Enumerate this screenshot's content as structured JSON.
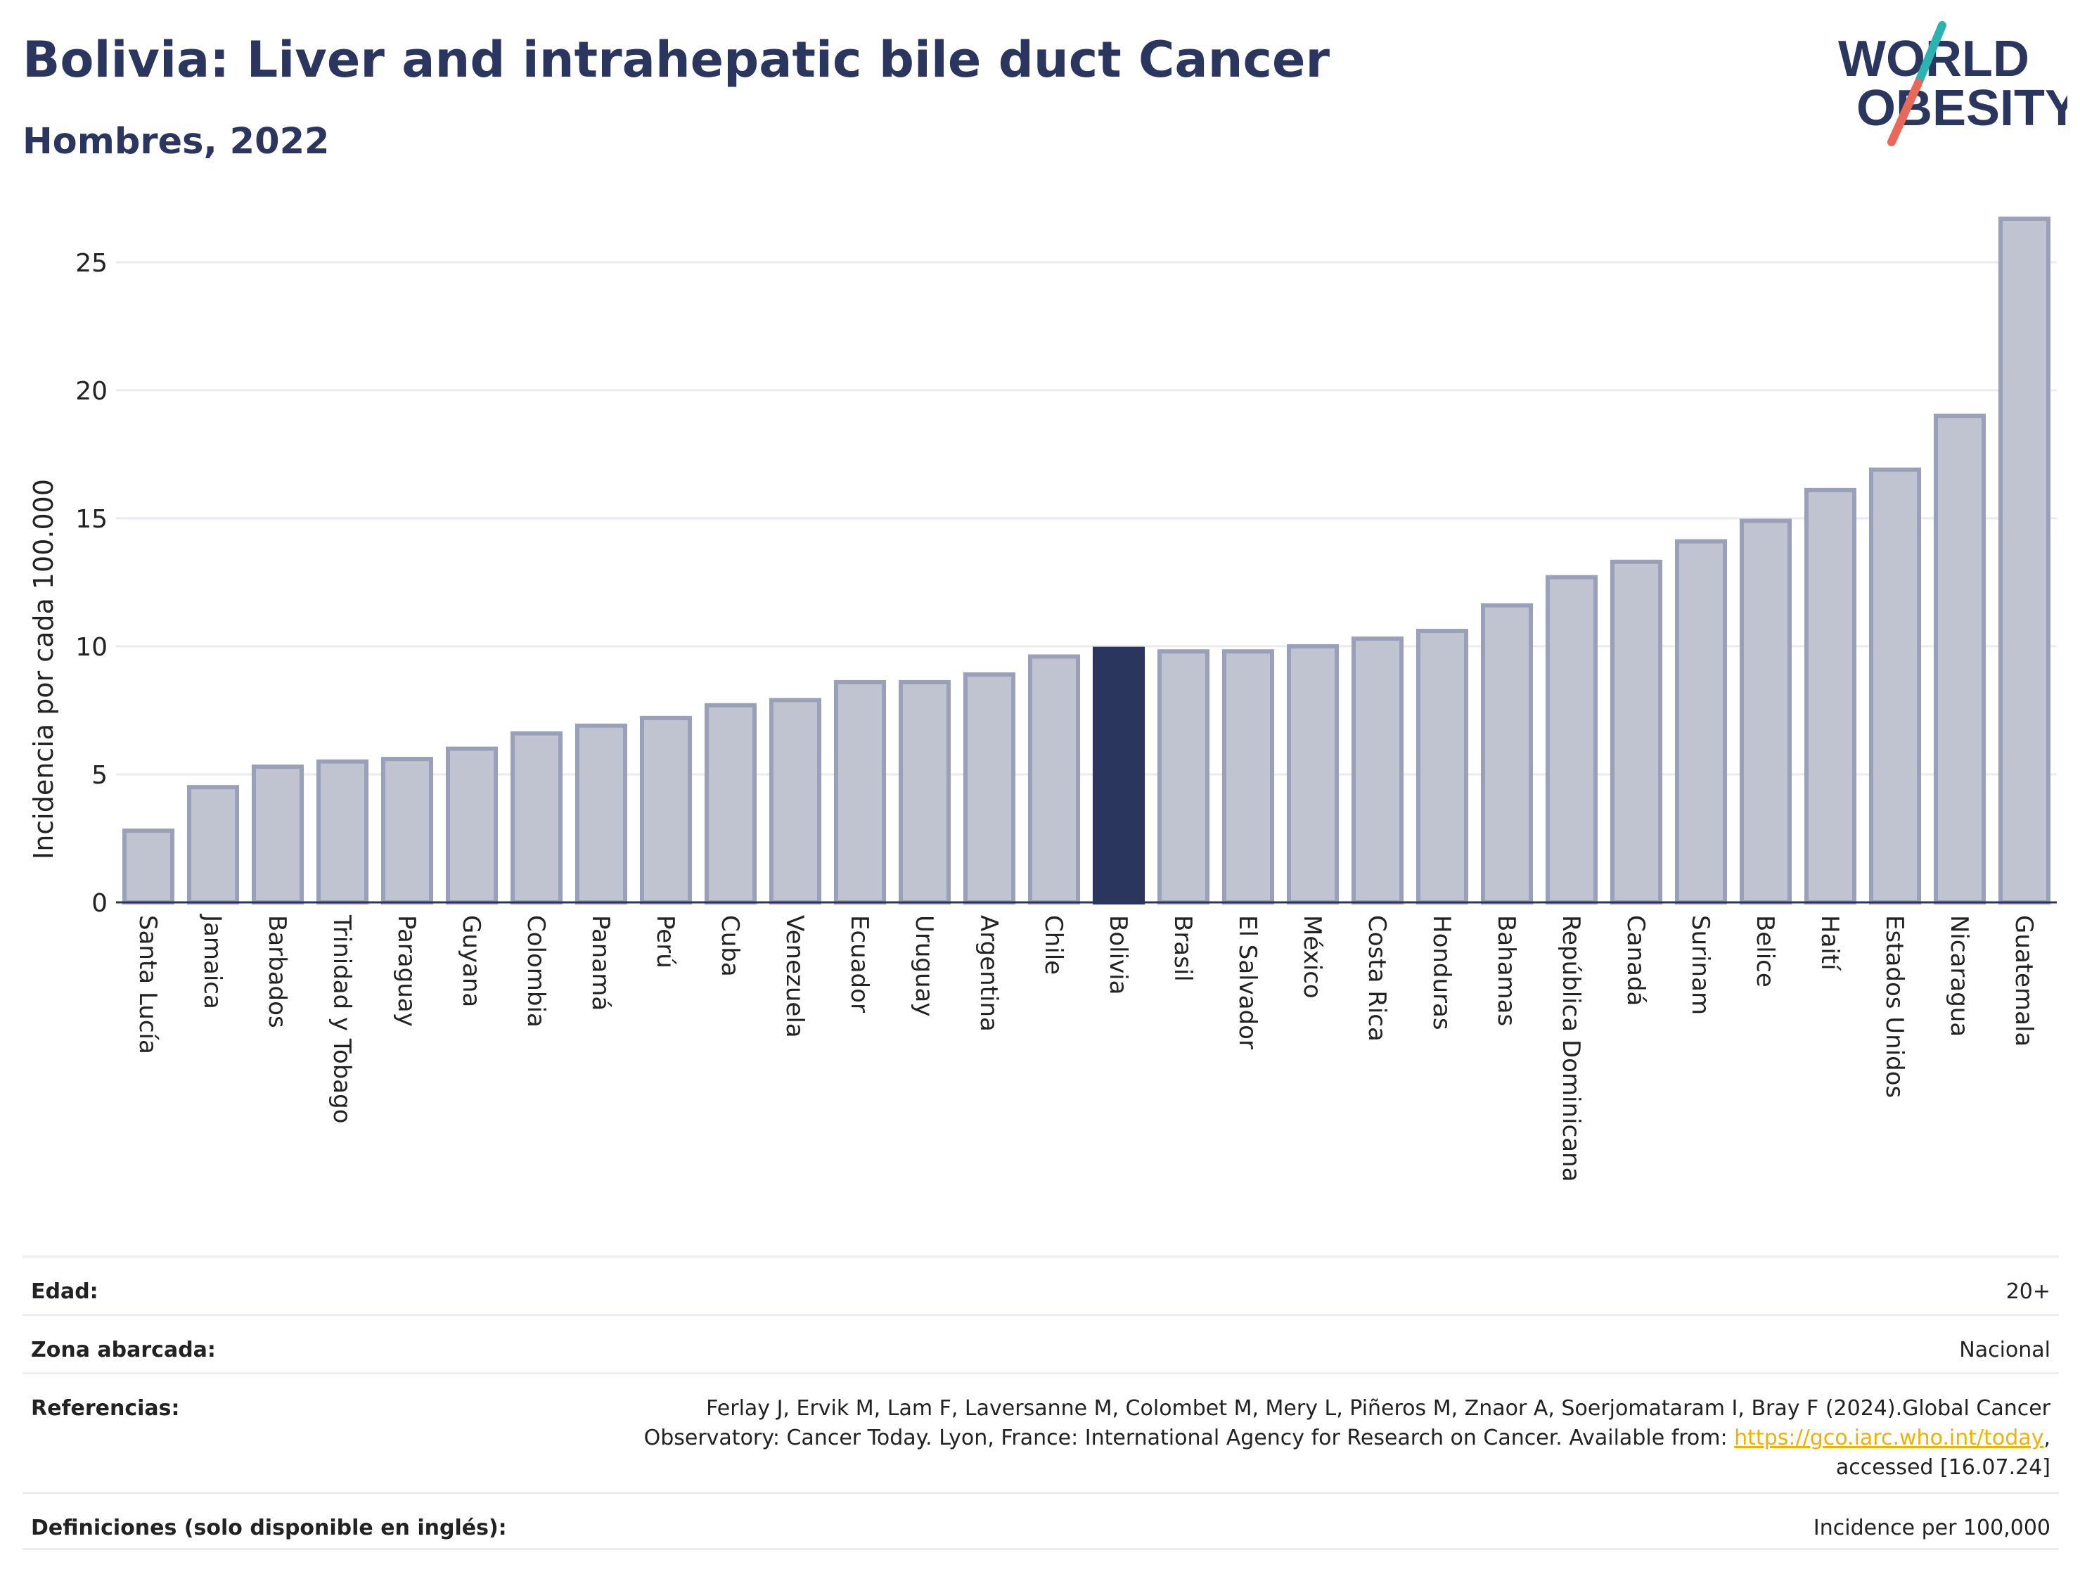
{
  "title": "Bolivia: Liver and intrahepatic bile duct Cancer",
  "subtitle": "Hombres, 2022",
  "logo": {
    "line1": "WORLD",
    "line2": "OBESITY",
    "accent_teal": "#2ab3b0",
    "accent_coral": "#e8685a",
    "text_color": "#2b365f"
  },
  "chart_data": {
    "type": "bar",
    "title": "Bolivia: Liver and intrahepatic bile duct Cancer",
    "subtitle": "Hombres, 2022",
    "xlabel": "",
    "ylabel": "Incidencia por cada 100.000",
    "ylim": [
      0,
      27
    ],
    "yticks": [
      0,
      5,
      10,
      15,
      20,
      25
    ],
    "grid": true,
    "highlight": "Bolivia",
    "colors": {
      "default_fill": "#c0c3d0",
      "default_stroke": "#9aa0b8",
      "highlight_fill": "#2b365f"
    },
    "categories": [
      "Santa Lucía",
      "Jamaica",
      "Barbados",
      "Trinidad y Tobago",
      "Paraguay",
      "Guyana",
      "Colombia",
      "Panamá",
      "Perú",
      "Cuba",
      "Venezuela",
      "Ecuador",
      "Uruguay",
      "Argentina",
      "Chile",
      "Bolivia",
      "Brasil",
      "El Salvador",
      "México",
      "Costa Rica",
      "Honduras",
      "Bahamas",
      "República Dominicana",
      "Canadá",
      "Surinam",
      "Belice",
      "Haití",
      "Estados Unidos",
      "Nicaragua",
      "Guatemala"
    ],
    "values": [
      2.8,
      4.5,
      5.3,
      5.5,
      5.6,
      6.0,
      6.6,
      6.9,
      7.2,
      7.7,
      7.9,
      8.6,
      8.6,
      8.9,
      9.6,
      9.9,
      9.8,
      9.8,
      10.0,
      10.3,
      10.6,
      11.6,
      12.7,
      13.3,
      14.1,
      14.9,
      16.1,
      16.9,
      19.0,
      26.7
    ]
  },
  "meta": {
    "age_label": "Edad:",
    "age_value": "20+",
    "area_label": "Zona abarcada:",
    "area_value": "Nacional",
    "refs_label": "Referencias:",
    "refs_line1": "Ferlay J, Ervik M, Lam F, Laversanne M, Colombet M, Mery L, Piñeros M, Znaor A, Soerjomataram I, Bray F (2024).Global Cancer",
    "refs_line2_pre": "Observatory: Cancer Today. Lyon, France: International Agency for Research on Cancer. Available from: ",
    "refs_link": "https://gco.iarc.who.int/today",
    "refs_line2_post": ",",
    "refs_line3": "accessed [16.07.24]",
    "defs_label": "Definiciones (solo disponible en inglés):",
    "defs_value": "Incidence per 100,000"
  }
}
